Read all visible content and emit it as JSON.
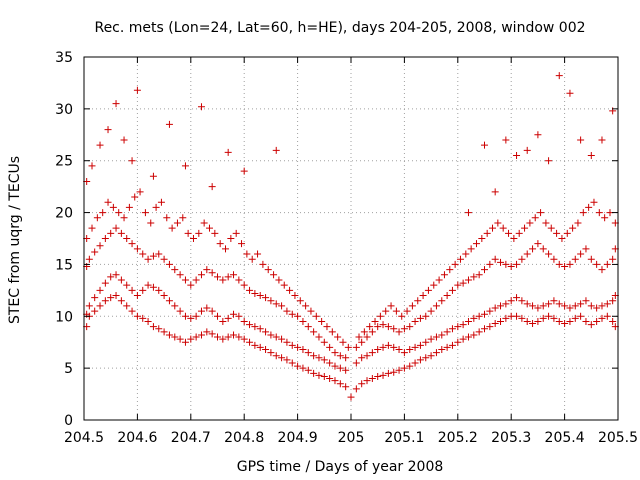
{
  "chart_data": {
    "type": "scatter",
    "title": "Rec. mets (Lon=24, Lat=60, h=HE), days 204-205, 2008, window 002",
    "xlabel": "GPS time / Days of year 2008",
    "ylabel": "STEC from uqrg / TECUs",
    "xlim": [
      204.5,
      205.5
    ],
    "ylim": [
      0,
      35
    ],
    "xticks": [
      "204.5",
      "204.6",
      "204.7",
      "204.8",
      "204.9",
      "205",
      "205.1",
      "205.2",
      "205.3",
      "205.4",
      "205.5"
    ],
    "yticks": [
      "0",
      "5",
      "10",
      "15",
      "20",
      "25",
      "30",
      "35"
    ],
    "grid": true,
    "marker": "plus",
    "color": "#cc0000",
    "series": [
      {
        "x": [
          204.505,
          204.51,
          204.52,
          204.53,
          204.54,
          204.55,
          204.56,
          204.57,
          204.58,
          204.59,
          204.6,
          204.61,
          204.62,
          204.63,
          204.64,
          204.65,
          204.66,
          204.67,
          204.68,
          204.69,
          204.7,
          204.71,
          204.72,
          204.73,
          204.74,
          204.75,
          204.76,
          204.77,
          204.78,
          204.79,
          204.8,
          204.81,
          204.82,
          204.83,
          204.84,
          204.85,
          204.86,
          204.87,
          204.88,
          204.89,
          204.9,
          204.91,
          204.92,
          204.93,
          204.94,
          204.95,
          204.96,
          204.97,
          204.98,
          204.99,
          205.0,
          205.01,
          205.02,
          205.03,
          205.04,
          205.05,
          205.06,
          205.07,
          205.08,
          205.09,
          205.1,
          205.11,
          205.12,
          205.13,
          205.14,
          205.15,
          205.16,
          205.17,
          205.18,
          205.19,
          205.2,
          205.21,
          205.22,
          205.23,
          205.24,
          205.25,
          205.26,
          205.27,
          205.28,
          205.29,
          205.3,
          205.31,
          205.32,
          205.33,
          205.34,
          205.35,
          205.36,
          205.37,
          205.38,
          205.39,
          205.4,
          205.41,
          205.42,
          205.43,
          205.44,
          205.45,
          205.46,
          205.47,
          205.48,
          205.49,
          205.495
        ],
        "y": [
          9.0,
          10.0,
          10.5,
          11.0,
          11.5,
          11.8,
          12.0,
          11.5,
          11.0,
          10.5,
          10.0,
          9.8,
          9.5,
          9.0,
          8.8,
          8.5,
          8.2,
          8.0,
          7.8,
          7.5,
          7.8,
          8.0,
          8.2,
          8.5,
          8.3,
          8.0,
          7.8,
          8.0,
          8.2,
          8.0,
          7.8,
          7.5,
          7.2,
          7.0,
          6.8,
          6.5,
          6.2,
          6.0,
          5.8,
          5.5,
          5.2,
          5.0,
          4.8,
          4.5,
          4.3,
          4.2,
          4.0,
          3.8,
          3.5,
          3.2,
          2.2,
          3.0,
          3.5,
          3.8,
          4.0,
          4.2,
          4.3,
          4.5,
          4.6,
          4.8,
          5.0,
          5.2,
          5.5,
          5.8,
          6.0,
          6.2,
          6.5,
          6.8,
          7.0,
          7.2,
          7.5,
          7.8,
          8.0,
          8.2,
          8.5,
          8.8,
          9.0,
          9.3,
          9.5,
          9.8,
          10.0,
          10.0,
          9.8,
          9.5,
          9.3,
          9.5,
          9.8,
          10.0,
          9.8,
          9.5,
          9.3,
          9.5,
          9.8,
          10.0,
          9.5,
          9.2,
          9.5,
          9.8,
          10.0,
          9.5,
          9.0
        ]
      },
      {
        "x": [
          204.505,
          204.51,
          204.52,
          204.53,
          204.54,
          204.55,
          204.56,
          204.57,
          204.58,
          204.59,
          204.6,
          204.61,
          204.62,
          204.63,
          204.64,
          204.65,
          204.66,
          204.67,
          204.68,
          204.69,
          204.7,
          204.71,
          204.72,
          204.73,
          204.74,
          204.75,
          204.76,
          204.77,
          204.78,
          204.79,
          204.8,
          204.81,
          204.82,
          204.83,
          204.84,
          204.85,
          204.86,
          204.87,
          204.88,
          204.89,
          204.9,
          204.91,
          204.92,
          204.93,
          204.94,
          204.95,
          204.96,
          204.97,
          204.98,
          204.99,
          205.01,
          205.02,
          205.03,
          205.04,
          205.05,
          205.06,
          205.07,
          205.08,
          205.09,
          205.1,
          205.11,
          205.12,
          205.13,
          205.14,
          205.15,
          205.16,
          205.17,
          205.18,
          205.19,
          205.2,
          205.21,
          205.22,
          205.23,
          205.24,
          205.25,
          205.26,
          205.27,
          205.28,
          205.29,
          205.3,
          205.31,
          205.32,
          205.33,
          205.34,
          205.35,
          205.36,
          205.37,
          205.38,
          205.39,
          205.4,
          205.41,
          205.42,
          205.43,
          205.44,
          205.45,
          205.46,
          205.47,
          205.48,
          205.49,
          205.495
        ],
        "y": [
          10.2,
          11.0,
          11.8,
          12.5,
          13.2,
          13.8,
          14.0,
          13.5,
          13.0,
          12.5,
          12.0,
          12.5,
          13.0,
          12.8,
          12.5,
          12.0,
          11.5,
          11.0,
          10.5,
          10.0,
          9.8,
          10.0,
          10.5,
          10.8,
          10.5,
          10.0,
          9.5,
          9.8,
          10.2,
          10.0,
          9.5,
          9.2,
          9.0,
          8.8,
          8.5,
          8.2,
          8.0,
          7.8,
          7.5,
          7.2,
          7.0,
          6.8,
          6.5,
          6.2,
          6.0,
          5.8,
          5.5,
          5.2,
          5.0,
          4.8,
          5.5,
          6.0,
          6.2,
          6.5,
          6.8,
          7.0,
          7.2,
          7.0,
          6.8,
          6.5,
          6.8,
          7.0,
          7.2,
          7.5,
          7.8,
          8.0,
          8.2,
          8.5,
          8.8,
          9.0,
          9.2,
          9.5,
          9.8,
          10.0,
          10.2,
          10.5,
          10.8,
          11.0,
          11.2,
          11.5,
          11.8,
          11.5,
          11.2,
          11.0,
          10.8,
          11.0,
          11.2,
          11.5,
          11.2,
          11.0,
          10.8,
          11.0,
          11.2,
          11.5,
          11.0,
          10.8,
          11.0,
          11.2,
          11.5,
          12.0
        ]
      },
      {
        "x": [
          204.505,
          204.51,
          204.52,
          204.53,
          204.54,
          204.55,
          204.56,
          204.57,
          204.58,
          204.59,
          204.6,
          204.61,
          204.62,
          204.63,
          204.64,
          204.65,
          204.66,
          204.67,
          204.68,
          204.69,
          204.7,
          204.71,
          204.72,
          204.73,
          204.74,
          204.75,
          204.76,
          204.77,
          204.78,
          204.79,
          204.8,
          204.81,
          204.82,
          204.83,
          204.84,
          204.85,
          204.86,
          204.87,
          204.88,
          204.89,
          204.9,
          204.91,
          204.92,
          204.93,
          204.94,
          204.95,
          204.96,
          204.97,
          204.98,
          204.99,
          205.01,
          205.02,
          205.03,
          205.04,
          205.05,
          205.06,
          205.07,
          205.08,
          205.09,
          205.1,
          205.11,
          205.12,
          205.13,
          205.14,
          205.15,
          205.16,
          205.17,
          205.18,
          205.19,
          205.2,
          205.21,
          205.22,
          205.23,
          205.24,
          205.25,
          205.26,
          205.27,
          205.28,
          205.29,
          205.3,
          205.31,
          205.32,
          205.33,
          205.34,
          205.35,
          205.36,
          205.37,
          205.38,
          205.39,
          205.4,
          205.41,
          205.42,
          205.43,
          205.44,
          205.45,
          205.46,
          205.47,
          205.48,
          205.49,
          205.495
        ],
        "y": [
          14.8,
          15.5,
          16.2,
          16.8,
          17.5,
          18.0,
          18.5,
          18.0,
          17.5,
          17.0,
          16.5,
          16.0,
          15.5,
          15.8,
          16.0,
          15.5,
          15.0,
          14.5,
          14.0,
          13.5,
          13.0,
          13.5,
          14.0,
          14.5,
          14.2,
          13.8,
          13.5,
          13.8,
          14.0,
          13.5,
          13.0,
          12.5,
          12.2,
          12.0,
          11.8,
          11.5,
          11.2,
          11.0,
          10.5,
          10.2,
          10.0,
          9.5,
          9.0,
          8.5,
          8.0,
          7.5,
          7.0,
          6.5,
          6.2,
          6.0,
          7.0,
          7.5,
          8.0,
          8.5,
          9.0,
          9.2,
          9.0,
          8.8,
          8.5,
          8.8,
          9.0,
          9.5,
          9.8,
          10.0,
          10.5,
          11.0,
          11.5,
          12.0,
          12.5,
          13.0,
          13.2,
          13.5,
          13.8,
          14.0,
          14.5,
          15.0,
          15.5,
          15.2,
          15.0,
          14.8,
          15.0,
          15.5,
          16.0,
          16.5,
          17.0,
          16.5,
          16.0,
          15.5,
          15.0,
          14.8,
          15.0,
          15.5,
          16.0,
          16.5,
          15.5,
          15.0,
          14.5,
          15.0,
          15.5,
          16.5
        ]
      },
      {
        "x": [
          204.505,
          204.515,
          204.525,
          204.535,
          204.545,
          204.555,
          204.565,
          204.575,
          204.585,
          204.595,
          204.605,
          204.615,
          204.625,
          204.635,
          204.645,
          204.655,
          204.665,
          204.675,
          204.685,
          204.695,
          204.705,
          204.715,
          204.725,
          204.735,
          204.745,
          204.755,
          204.765,
          204.775,
          204.785,
          204.795,
          204.805,
          204.815,
          204.825,
          204.835,
          204.845,
          204.855,
          204.865,
          204.875,
          204.885,
          204.895,
          204.905,
          204.915,
          204.925,
          204.935,
          204.945,
          204.955,
          204.965,
          204.975,
          204.985,
          204.995,
          205.015,
          205.025,
          205.035,
          205.045,
          205.055,
          205.065,
          205.075,
          205.085,
          205.095,
          205.105,
          205.115,
          205.125,
          205.135,
          205.145,
          205.155,
          205.165,
          205.175,
          205.185,
          205.195,
          205.205,
          205.215,
          205.225,
          205.235,
          205.245,
          205.255,
          205.265,
          205.275,
          205.285,
          205.295,
          205.305,
          205.315,
          205.325,
          205.335,
          205.345,
          205.355,
          205.365,
          205.375,
          205.385,
          205.395,
          205.405,
          205.415,
          205.425,
          205.435,
          205.445,
          205.455,
          205.465,
          205.475,
          205.485,
          205.495
        ],
        "y": [
          17.5,
          18.5,
          19.5,
          20.0,
          21.0,
          20.5,
          20.0,
          19.5,
          20.5,
          21.5,
          22.0,
          20.0,
          19.0,
          20.5,
          21.0,
          19.5,
          18.5,
          19.0,
          19.5,
          18.0,
          17.5,
          18.0,
          19.0,
          18.5,
          18.0,
          17.0,
          16.5,
          17.5,
          18.0,
          17.0,
          16.0,
          15.5,
          16.0,
          15.0,
          14.5,
          14.0,
          13.5,
          13.0,
          12.5,
          12.0,
          11.5,
          11.0,
          10.5,
          10.0,
          9.5,
          9.0,
          8.5,
          8.0,
          7.5,
          7.0,
          8.0,
          8.5,
          9.0,
          9.5,
          10.0,
          10.5,
          11.0,
          10.5,
          10.0,
          10.5,
          11.0,
          11.5,
          12.0,
          12.5,
          13.0,
          13.5,
          14.0,
          14.5,
          15.0,
          15.5,
          16.0,
          16.5,
          17.0,
          17.5,
          18.0,
          18.5,
          19.0,
          18.5,
          18.0,
          17.5,
          18.0,
          18.5,
          19.0,
          19.5,
          20.0,
          19.0,
          18.5,
          18.0,
          17.5,
          18.0,
          18.5,
          19.0,
          20.0,
          20.5,
          21.0,
          20.0,
          19.5,
          20.0,
          19.0
        ]
      },
      {
        "x": [
          204.505,
          204.515,
          204.53,
          204.545,
          204.56,
          204.575,
          204.59,
          204.6,
          204.63,
          204.66,
          204.69,
          204.72,
          204.74,
          204.77,
          204.8,
          204.86,
          205.22,
          205.25,
          205.27,
          205.29,
          205.31,
          205.33,
          205.35,
          205.37,
          205.39,
          205.41,
          205.43,
          205.45,
          205.47,
          205.49
        ],
        "y": [
          23.0,
          24.5,
          26.5,
          28.0,
          30.5,
          27.0,
          25.0,
          31.8,
          23.5,
          28.5,
          24.5,
          30.2,
          22.5,
          25.8,
          24.0,
          26.0,
          20.0,
          26.5,
          22.0,
          27.0,
          25.5,
          26.0,
          27.5,
          25.0,
          33.2,
          31.5,
          27.0,
          25.5,
          27.0,
          29.8
        ]
      }
    ]
  }
}
